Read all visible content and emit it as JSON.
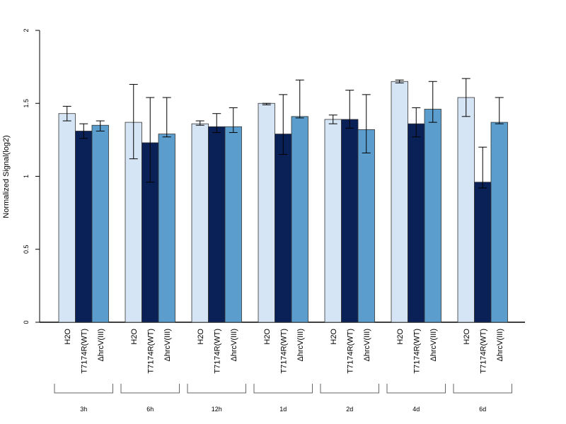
{
  "chart_data": {
    "type": "bar",
    "title": "",
    "xlabel": "",
    "ylabel": "Normalized Signal(log2)",
    "ylim": [
      0,
      2
    ],
    "yticks": [
      "0",
      "0.5",
      "1",
      "1.5",
      "2"
    ],
    "grid": false,
    "legend": "none",
    "groups": [
      "3h",
      "6h",
      "12h",
      "1d",
      "2d",
      "4d",
      "6d"
    ],
    "series": [
      {
        "name": "H2O",
        "color": "#d6e5f5",
        "values": [
          1.43,
          1.37,
          1.36,
          1.5,
          1.39,
          1.65,
          1.54
        ],
        "err_low": [
          1.38,
          1.12,
          1.35,
          1.49,
          1.36,
          1.64,
          1.41
        ],
        "err_high": [
          1.48,
          1.63,
          1.38,
          1.5,
          1.42,
          1.66,
          1.67
        ]
      },
      {
        "name": "T7174R(WT)",
        "color": "#0a2157",
        "values": [
          1.31,
          1.23,
          1.34,
          1.29,
          1.39,
          1.36,
          0.96
        ],
        "err_low": [
          1.26,
          0.96,
          1.3,
          1.15,
          1.33,
          1.27,
          0.92
        ],
        "err_high": [
          1.36,
          1.54,
          1.43,
          1.56,
          1.59,
          1.47,
          1.2
        ]
      },
      {
        "name": "ΔhrcV(III)",
        "color": "#5b9ecd",
        "values": [
          1.35,
          1.29,
          1.34,
          1.41,
          1.32,
          1.46,
          1.37
        ],
        "err_low": [
          1.31,
          1.27,
          1.3,
          1.4,
          1.16,
          1.37,
          1.36
        ],
        "err_high": [
          1.38,
          1.54,
          1.47,
          1.66,
          1.56,
          1.65,
          1.54
        ]
      }
    ]
  }
}
